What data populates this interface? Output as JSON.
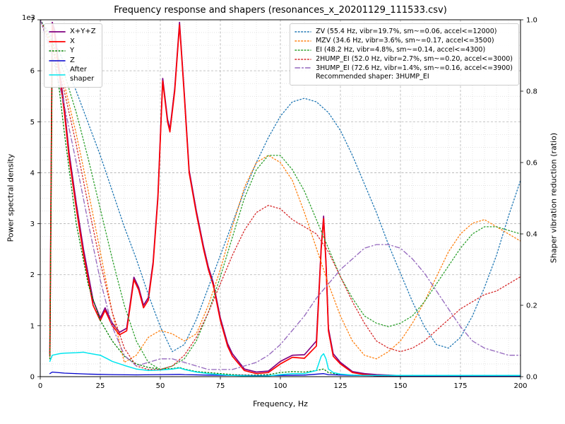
{
  "chart_data": {
    "type": "line",
    "title": "Frequency response and shapers (resonances_x_20201129_111533.csv)",
    "xlabel": "Frequency, Hz",
    "ylabel_left": "Power spectral density",
    "ylabel_right": "Shaper vibration reduction (ratio)",
    "left_axis_multiplier": "1e3",
    "left_tick_scale": 1000,
    "xlim": [
      0,
      200
    ],
    "ylim_left": [
      0,
      7000
    ],
    "ylim_right": [
      0,
      1.0
    ],
    "x_ticks": [
      0,
      25,
      50,
      75,
      100,
      125,
      150,
      175,
      200
    ],
    "y_ticks_left": [
      0,
      1,
      2,
      3,
      4,
      5,
      6,
      7
    ],
    "y_ticks_right": [
      0.0,
      0.2,
      0.4,
      0.6,
      0.8,
      1.0
    ],
    "grid": "both",
    "legend_note": "Recommended shaper: 3HUMP_EI",
    "shaper_x": [
      0,
      5,
      10,
      15,
      20,
      25,
      30,
      35,
      40,
      45,
      50,
      55,
      60,
      65,
      70,
      75,
      80,
      85,
      90,
      95,
      100,
      105,
      110,
      115,
      120,
      125,
      130,
      135,
      140,
      145,
      150,
      155,
      160,
      165,
      170,
      175,
      180,
      185,
      190,
      195,
      200
    ],
    "series": [
      {
        "name": "X+Y+Z",
        "color": "#800080",
        "style": "solid",
        "width": 1.7,
        "axis": "left",
        "legend": "left",
        "x": [
          4,
          5,
          6,
          8,
          10,
          12,
          15,
          18,
          20,
          22,
          25,
          27,
          30,
          33,
          36,
          39,
          41,
          43,
          45,
          47,
          49,
          51,
          53,
          54,
          56,
          58,
          60,
          62,
          65,
          68,
          70,
          72,
          75,
          78,
          80,
          85,
          90,
          95,
          100,
          105,
          110,
          115,
          117,
          118,
          119,
          120,
          122,
          125,
          130,
          135,
          140,
          150,
          160,
          170,
          180,
          190,
          200
        ],
        "y": [
          450,
          6950,
          6800,
          6000,
          5300,
          4400,
          3400,
          2500,
          2000,
          1500,
          1150,
          1350,
          1050,
          870,
          950,
          1950,
          1750,
          1400,
          1550,
          2250,
          3550,
          5850,
          5050,
          4850,
          5650,
          6950,
          5550,
          4050,
          3250,
          2550,
          2150,
          1850,
          1150,
          650,
          450,
          150,
          90,
          110,
          300,
          420,
          430,
          700,
          2550,
          3150,
          2250,
          950,
          450,
          280,
          100,
          60,
          40,
          20,
          15,
          12,
          10,
          8,
          8
        ]
      },
      {
        "name": "X",
        "color": "#ff0000",
        "style": "solid",
        "width": 1.7,
        "axis": "left",
        "legend": "left",
        "x": [
          4,
          5,
          6,
          8,
          10,
          12,
          15,
          18,
          20,
          22,
          25,
          27,
          30,
          33,
          36,
          39,
          41,
          43,
          45,
          47,
          49,
          51,
          53,
          54,
          56,
          58,
          60,
          62,
          65,
          68,
          70,
          72,
          75,
          78,
          80,
          85,
          90,
          95,
          100,
          105,
          110,
          115,
          117,
          118,
          119,
          120,
          122,
          125,
          130,
          135,
          140,
          150,
          160,
          170,
          180,
          190,
          200
        ],
        "y": [
          400,
          6900,
          6700,
          5900,
          5200,
          4300,
          3300,
          2400,
          1900,
          1400,
          1100,
          1300,
          1000,
          820,
          900,
          1900,
          1700,
          1350,
          1500,
          2200,
          3500,
          5800,
          5000,
          4800,
          5600,
          6900,
          5500,
          4000,
          3200,
          2500,
          2100,
          1800,
          1100,
          600,
          400,
          120,
          60,
          80,
          250,
          380,
          360,
          600,
          2500,
          3100,
          2200,
          900,
          400,
          250,
          80,
          40,
          20,
          10,
          8,
          6,
          5,
          4,
          4
        ]
      },
      {
        "name": "Y",
        "color": "#008000",
        "style": "dotted",
        "width": 1.3,
        "axis": "left",
        "legend": "left",
        "x": [
          4,
          5,
          8,
          10,
          15,
          20,
          25,
          30,
          35,
          40,
          45,
          50,
          55,
          58,
          60,
          65,
          70,
          75,
          80,
          85,
          90,
          95,
          100,
          105,
          110,
          115,
          118,
          120,
          125,
          130,
          140,
          150,
          160,
          180,
          200
        ],
        "y": [
          350,
          6600,
          5600,
          4800,
          3000,
          1800,
          1100,
          700,
          400,
          250,
          180,
          150,
          160,
          180,
          150,
          100,
          80,
          60,
          40,
          30,
          30,
          40,
          80,
          100,
          90,
          120,
          150,
          80,
          40,
          30,
          20,
          15,
          10,
          8,
          8
        ]
      },
      {
        "name": "Z",
        "color": "#0000cd",
        "style": "solid",
        "width": 1.3,
        "axis": "left",
        "legend": "left",
        "x": [
          4,
          5,
          10,
          20,
          30,
          40,
          50,
          58,
          60,
          70,
          80,
          90,
          100,
          110,
          118,
          120,
          130,
          140,
          160,
          180,
          200
        ],
        "y": [
          60,
          90,
          70,
          50,
          40,
          35,
          40,
          45,
          40,
          30,
          25,
          20,
          25,
          30,
          60,
          40,
          25,
          20,
          15,
          12,
          10
        ]
      },
      {
        "name": "After\nshaper",
        "color": "#00e5ee",
        "style": "solid",
        "width": 1.5,
        "axis": "left",
        "legend": "left",
        "x": [
          4,
          5,
          8,
          10,
          15,
          18,
          20,
          25,
          28,
          30,
          35,
          40,
          45,
          50,
          55,
          58,
          60,
          65,
          70,
          75,
          80,
          85,
          90,
          95,
          100,
          105,
          110,
          115,
          117,
          118,
          119,
          120,
          122,
          125,
          130,
          135,
          140,
          150,
          160,
          180,
          200
        ],
        "y": [
          300,
          420,
          450,
          460,
          470,
          480,
          460,
          420,
          350,
          300,
          220,
          150,
          120,
          130,
          150,
          170,
          140,
          90,
          60,
          40,
          25,
          15,
          10,
          15,
          40,
          60,
          60,
          120,
          400,
          450,
          350,
          150,
          80,
          50,
          30,
          25,
          25,
          25,
          25,
          25,
          25
        ]
      },
      {
        "name": "ZV (55.4 Hz, vibr=19.7%, sm~=0.06, accel<=12000)",
        "color": "#1f77b4",
        "style": "dotted",
        "width": 1.3,
        "axis": "right",
        "legend": "right",
        "y": [
          1.0,
          0.95,
          0.88,
          0.8,
          0.71,
          0.62,
          0.52,
          0.42,
          0.33,
          0.23,
          0.14,
          0.07,
          0.09,
          0.16,
          0.25,
          0.34,
          0.43,
          0.52,
          0.6,
          0.67,
          0.73,
          0.77,
          0.78,
          0.77,
          0.74,
          0.69,
          0.62,
          0.54,
          0.46,
          0.37,
          0.29,
          0.21,
          0.14,
          0.09,
          0.08,
          0.11,
          0.17,
          0.25,
          0.34,
          0.45,
          0.55
        ]
      },
      {
        "name": "MZV (34.6 Hz, vibr=3.6%, sm~=0.17, accel<=3500)",
        "color": "#ff7f0e",
        "style": "dotted",
        "width": 1.3,
        "axis": "right",
        "legend": "right",
        "y": [
          1.0,
          0.93,
          0.82,
          0.68,
          0.52,
          0.35,
          0.18,
          0.04,
          0.06,
          0.11,
          0.13,
          0.12,
          0.1,
          0.12,
          0.2,
          0.3,
          0.42,
          0.53,
          0.6,
          0.62,
          0.6,
          0.55,
          0.46,
          0.36,
          0.26,
          0.17,
          0.1,
          0.06,
          0.05,
          0.07,
          0.1,
          0.15,
          0.21,
          0.28,
          0.35,
          0.4,
          0.43,
          0.44,
          0.42,
          0.4,
          0.38
        ]
      },
      {
        "name": "EI (48.2 Hz, vibr=4.8%, sm~=0.14, accel<=4300)",
        "color": "#2ca02c",
        "style": "dotted",
        "width": 1.3,
        "axis": "right",
        "legend": "right",
        "y": [
          1.0,
          0.94,
          0.85,
          0.74,
          0.61,
          0.47,
          0.33,
          0.2,
          0.1,
          0.04,
          0.02,
          0.03,
          0.05,
          0.1,
          0.18,
          0.28,
          0.39,
          0.5,
          0.58,
          0.62,
          0.62,
          0.58,
          0.52,
          0.44,
          0.36,
          0.28,
          0.22,
          0.17,
          0.15,
          0.14,
          0.15,
          0.17,
          0.21,
          0.26,
          0.31,
          0.36,
          0.4,
          0.42,
          0.42,
          0.41,
          0.4
        ]
      },
      {
        "name": "2HUMP_EI (52.0 Hz, vibr=2.7%, sm~=0.20, accel<=3000)",
        "color": "#d62728",
        "style": "dotted",
        "width": 1.3,
        "axis": "right",
        "legend": "right",
        "y": [
          1.0,
          0.92,
          0.8,
          0.65,
          0.48,
          0.32,
          0.18,
          0.08,
          0.03,
          0.02,
          0.02,
          0.03,
          0.06,
          0.11,
          0.18,
          0.26,
          0.34,
          0.41,
          0.46,
          0.48,
          0.47,
          0.44,
          0.42,
          0.4,
          0.35,
          0.28,
          0.21,
          0.15,
          0.1,
          0.08,
          0.07,
          0.08,
          0.1,
          0.13,
          0.16,
          0.19,
          0.21,
          0.23,
          0.24,
          0.26,
          0.28
        ]
      },
      {
        "name": "3HUMP_EI (72.6 Hz, vibr=1.4%, sm~=0.16, accel<=3900)",
        "color": "#9467bd",
        "style": "dashdot",
        "width": 1.3,
        "axis": "right",
        "legend": "right",
        "y": [
          1.0,
          0.9,
          0.76,
          0.6,
          0.43,
          0.27,
          0.14,
          0.06,
          0.03,
          0.04,
          0.05,
          0.05,
          0.04,
          0.03,
          0.02,
          0.02,
          0.02,
          0.03,
          0.04,
          0.06,
          0.09,
          0.13,
          0.17,
          0.22,
          0.26,
          0.3,
          0.33,
          0.36,
          0.37,
          0.37,
          0.36,
          0.33,
          0.29,
          0.24,
          0.19,
          0.14,
          0.1,
          0.08,
          0.07,
          0.06,
          0.06
        ]
      }
    ]
  }
}
